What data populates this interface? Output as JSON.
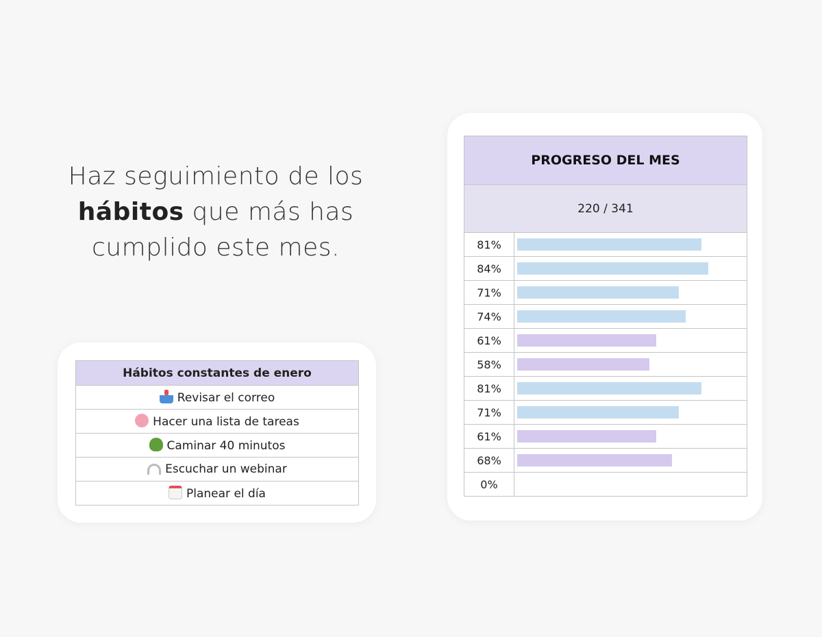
{
  "headline": {
    "line1": "Haz seguimiento de los",
    "bold": "hábitos",
    "line2_rest": " que más has",
    "line3": "cumplido este mes."
  },
  "habits": {
    "title": "Hábitos constantes de enero",
    "items": [
      {
        "icon": "inbox-tray-icon",
        "label": "Revisar el correo"
      },
      {
        "icon": "brain-icon",
        "label": "Hacer una lista de tareas"
      },
      {
        "icon": "tree-icon",
        "label": "Caminar 40 minutos"
      },
      {
        "icon": "headphones-icon",
        "label": "Escuchar un webinar"
      },
      {
        "icon": "calendar-icon",
        "label": "Planear el día"
      }
    ]
  },
  "progress": {
    "title": "PROGRESO DEL MES",
    "count": "220 / 341",
    "rows": [
      {
        "label": "81%",
        "value": 81,
        "color": "#c4dcf0"
      },
      {
        "label": "84%",
        "value": 84,
        "color": "#c4dcf0"
      },
      {
        "label": "71%",
        "value": 71,
        "color": "#c4dcf0"
      },
      {
        "label": "74%",
        "value": 74,
        "color": "#c4dcf0"
      },
      {
        "label": "61%",
        "value": 61,
        "color": "#d5c9ee"
      },
      {
        "label": "58%",
        "value": 58,
        "color": "#d5c9ee"
      },
      {
        "label": "81%",
        "value": 81,
        "color": "#c4dcf0"
      },
      {
        "label": "71%",
        "value": 71,
        "color": "#c4dcf0"
      },
      {
        "label": "61%",
        "value": 61,
        "color": "#d5c9ee"
      },
      {
        "label": "68%",
        "value": 68,
        "color": "#d5c9ee"
      },
      {
        "label": "0%",
        "value": 0,
        "color": "#d5c9ee"
      }
    ]
  }
}
